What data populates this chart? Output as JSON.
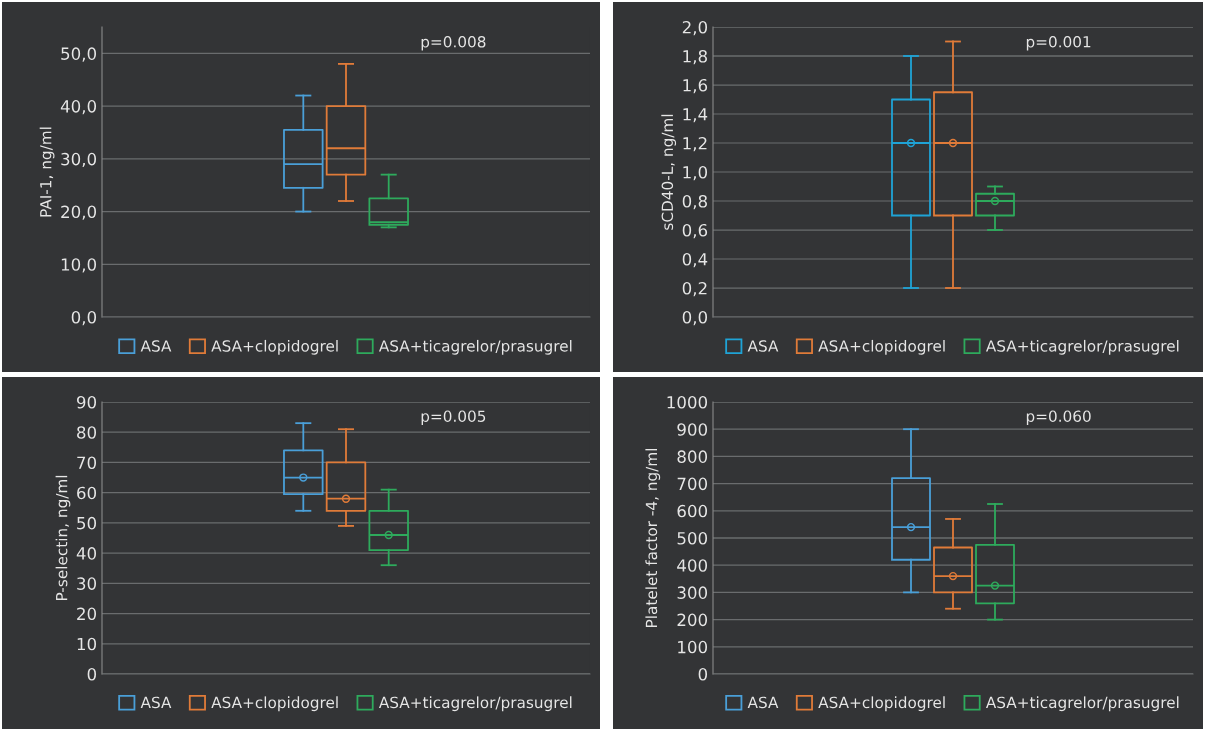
{
  "chart_data": [
    {
      "type": "box",
      "ylabel": "PAI-1, ng/ml",
      "categories": [
        null
      ],
      "ylim": [
        0,
        55
      ],
      "yticks": [
        {
          "value": 0,
          "label": "0,0"
        },
        {
          "value": 10,
          "label": "10,0"
        },
        {
          "value": 20,
          "label": "20,0"
        },
        {
          "value": 30,
          "label": "30,0"
        },
        {
          "value": 40,
          "label": "40,0"
        },
        {
          "value": 50,
          "label": "50,0"
        }
      ],
      "grid": "y",
      "legend": "bottom",
      "annotations": [
        "p=0.008"
      ],
      "series": [
        {
          "name": "ASA",
          "color": "#4a9fd8",
          "boxes": [
            {
              "low": 20,
              "q1": 24.5,
              "median": 29,
              "q3": 35.5,
              "high": 42
            }
          ]
        },
        {
          "name": "ASA+clopidogrel",
          "color": "#e07b39",
          "boxes": [
            {
              "low": 22,
              "q1": 27,
              "median": 32,
              "q3": 40,
              "high": 48
            }
          ]
        },
        {
          "name": "ASA+ticagrelor/prasugrel",
          "color": "#2eaa5c",
          "boxes": [
            {
              "low": 17,
              "q1": 17.5,
              "median": 18,
              "q3": 22.5,
              "high": 27
            }
          ]
        }
      ]
    },
    {
      "type": "box",
      "ylabel": "sCD40-L, ng/ml",
      "categories": [
        null
      ],
      "ylim": [
        0,
        2
      ],
      "yticks": [
        {
          "value": 0,
          "label": "0,0"
        },
        {
          "value": 0.2,
          "label": "0,2"
        },
        {
          "value": 0.4,
          "label": "0,4"
        },
        {
          "value": 0.6,
          "label": "0,6"
        },
        {
          "value": 0.8,
          "label": "0,8"
        },
        {
          "value": 1.0,
          "label": "1,0"
        },
        {
          "value": 1.2,
          "label": "1,2"
        },
        {
          "value": 1.4,
          "label": "1,4"
        },
        {
          "value": 1.6,
          "label": "1,6"
        },
        {
          "value": 1.8,
          "label": "1,8"
        },
        {
          "value": 2.0,
          "label": "2,0"
        }
      ],
      "grid": "y",
      "legend": "bottom",
      "annotations": [
        "p=0.001"
      ],
      "series": [
        {
          "name": "ASA",
          "color": "#1fa3d6",
          "boxes": [
            {
              "low": 0.2,
              "q1": 0.7,
              "median": 1.2,
              "q3": 1.5,
              "high": 1.8,
              "mean": 1.2
            }
          ]
        },
        {
          "name": "ASA+clopidogrel",
          "color": "#e07b39",
          "boxes": [
            {
              "low": 0.2,
              "q1": 0.7,
              "median": 1.2,
              "q3": 1.55,
              "high": 1.9,
              "mean": 1.2
            }
          ]
        },
        {
          "name": "ASA+ticagrelor/prasugrel",
          "color": "#2eaa5c",
          "boxes": [
            {
              "low": 0.6,
              "q1": 0.7,
              "median": 0.8,
              "q3": 0.85,
              "high": 0.9,
              "mean": 0.8
            }
          ]
        }
      ]
    },
    {
      "type": "box",
      "ylabel": "P-selectin, ng/ml",
      "categories": [
        null
      ],
      "ylim": [
        0,
        90
      ],
      "yticks": [
        0,
        10,
        20,
        30,
        40,
        50,
        60,
        70,
        80,
        90
      ],
      "grid": "y",
      "legend": "bottom",
      "annotations": [
        "p=0.005"
      ],
      "series": [
        {
          "name": "ASA",
          "color": "#4a9fd8",
          "boxes": [
            {
              "low": 54,
              "q1": 59.5,
              "median": 65,
              "q3": 74,
              "high": 83,
              "mean": 65
            }
          ]
        },
        {
          "name": "ASA+clopidogrel",
          "color": "#e07b39",
          "boxes": [
            {
              "low": 49,
              "q1": 54,
              "median": 58,
              "q3": 70,
              "high": 81,
              "mean": 58
            }
          ]
        },
        {
          "name": "ASA+ticagrelor/prasugrel",
          "color": "#2eaa5c",
          "boxes": [
            {
              "low": 36,
              "q1": 41,
              "median": 46,
              "q3": 54,
              "high": 61,
              "mean": 46
            }
          ]
        }
      ]
    },
    {
      "type": "box",
      "ylabel": "Platelet factor -4, ng/ml",
      "categories": [
        null
      ],
      "ylim": [
        0,
        1000
      ],
      "yticks": [
        0,
        100,
        200,
        300,
        400,
        500,
        600,
        700,
        800,
        900,
        1000
      ],
      "grid": "y",
      "legend": "bottom",
      "annotations": [
        "p=0.060"
      ],
      "series": [
        {
          "name": "ASA",
          "color": "#4a9fd8",
          "boxes": [
            {
              "low": 300,
              "q1": 420,
              "median": 540,
              "q3": 720,
              "high": 900,
              "mean": 540
            }
          ]
        },
        {
          "name": "ASA+clopidogrel",
          "color": "#e07b39",
          "boxes": [
            {
              "low": 240,
              "q1": 300,
              "median": 360,
              "q3": 465,
              "high": 570,
              "mean": 360
            }
          ]
        },
        {
          "name": "ASA+ticagrelor/prasugrel",
          "color": "#2eaa5c",
          "boxes": [
            {
              "low": 200,
              "q1": 260,
              "median": 325,
              "q3": 475,
              "high": 625,
              "mean": 325
            }
          ]
        }
      ]
    }
  ]
}
